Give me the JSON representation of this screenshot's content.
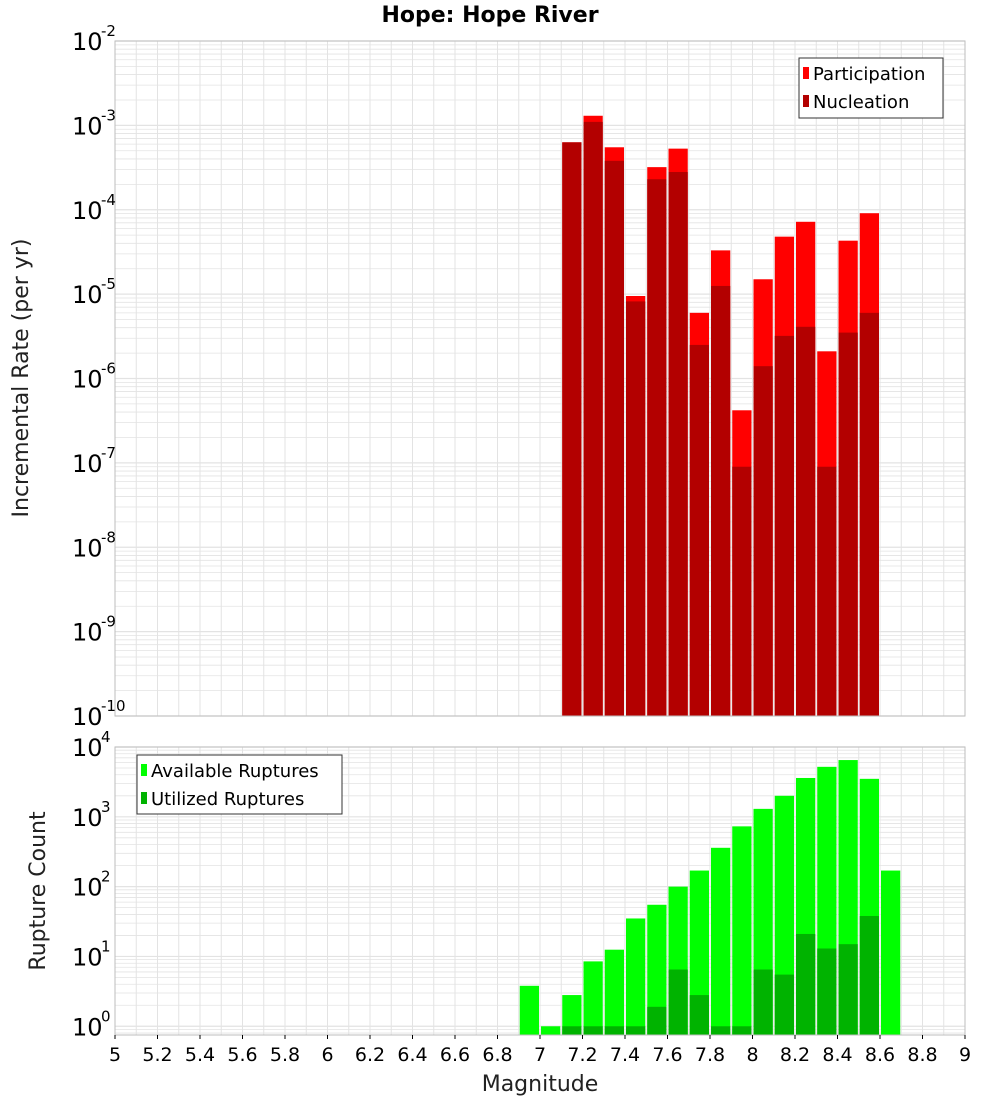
{
  "title": "Hope: Hope River",
  "colors": {
    "participation": "#ff0000",
    "nucleation": "#b30000",
    "available": "#00ff00",
    "utilized": "#00b300",
    "grid": "#e3e3e3",
    "frame": "#bdbdbd"
  },
  "chart_data": [
    {
      "type": "bar",
      "scale": "log",
      "xlabel": "",
      "ylabel": "Incremental Rate (per yr)",
      "xlim": [
        5,
        9
      ],
      "ylim": [
        1e-10,
        0.01
      ],
      "ytick_exponents": [
        -10,
        -9,
        -8,
        -7,
        -6,
        -5,
        -4,
        -3,
        -2
      ],
      "grid": true,
      "legend": {
        "placement": "top-right",
        "entries": [
          {
            "label": "Participation",
            "color": "#ff0000"
          },
          {
            "label": "Nucleation",
            "color": "#b30000"
          }
        ]
      },
      "x": [
        7.15,
        7.25,
        7.35,
        7.45,
        7.55,
        7.65,
        7.75,
        7.85,
        7.95,
        8.05,
        8.15,
        8.25,
        8.35,
        8.45,
        8.55
      ],
      "series": [
        {
          "name": "Participation",
          "color": "#ff0000",
          "values": [
            0.00063,
            0.0013,
            0.00055,
            9.5e-06,
            0.00032,
            0.00053,
            6e-06,
            3.3e-05,
            4.2e-07,
            1.5e-05,
            4.8e-05,
            7.2e-05,
            2.1e-06,
            4.3e-05,
            9.1e-05
          ]
        },
        {
          "name": "Nucleation",
          "color": "#b30000",
          "values": [
            0.00063,
            0.0011,
            0.00038,
            8.2e-06,
            0.00023,
            0.00028,
            2.5e-06,
            1.25e-05,
            9e-08,
            1.4e-06,
            3.2e-06,
            4.1e-06,
            9e-08,
            3.5e-06,
            6e-06
          ]
        }
      ]
    },
    {
      "type": "bar",
      "scale": "log",
      "xlabel": "Magnitude",
      "ylabel": "Rupture Count",
      "xlim": [
        5,
        9
      ],
      "ylim": [
        0.75,
        10000
      ],
      "ytick_exponents": [
        0,
        1,
        2,
        3,
        4
      ],
      "xticks": [
        "5",
        "5.2",
        "5.4",
        "5.6",
        "5.8",
        "6",
        "6.2",
        "6.4",
        "6.6",
        "6.8",
        "7",
        "7.2",
        "7.4",
        "7.6",
        "7.8",
        "8",
        "8.2",
        "8.4",
        "8.6",
        "8.8",
        "9"
      ],
      "grid": true,
      "legend": {
        "placement": "top-left",
        "entries": [
          {
            "label": "Available Ruptures",
            "color": "#00ff00"
          },
          {
            "label": "Utilized Ruptures",
            "color": "#00b300"
          }
        ]
      },
      "x": [
        6.95,
        7.05,
        7.15,
        7.25,
        7.35,
        7.45,
        7.55,
        7.65,
        7.75,
        7.85,
        7.95,
        8.05,
        8.15,
        8.25,
        8.35,
        8.45,
        8.55,
        8.65
      ],
      "series": [
        {
          "name": "Available Ruptures",
          "color": "#00ff00",
          "values": [
            3.8,
            1,
            2.8,
            8.5,
            12.5,
            35,
            55,
            100,
            170,
            360,
            730,
            1300,
            2000,
            3600,
            5200,
            6500,
            3500,
            170
          ]
        },
        {
          "name": "Utilized Ruptures",
          "color": "#00b300",
          "values": [
            null,
            null,
            1,
            1,
            1,
            1,
            1.9,
            6.5,
            2.8,
            1,
            1,
            6.5,
            5.5,
            21,
            13,
            15,
            38,
            null
          ]
        }
      ]
    }
  ]
}
